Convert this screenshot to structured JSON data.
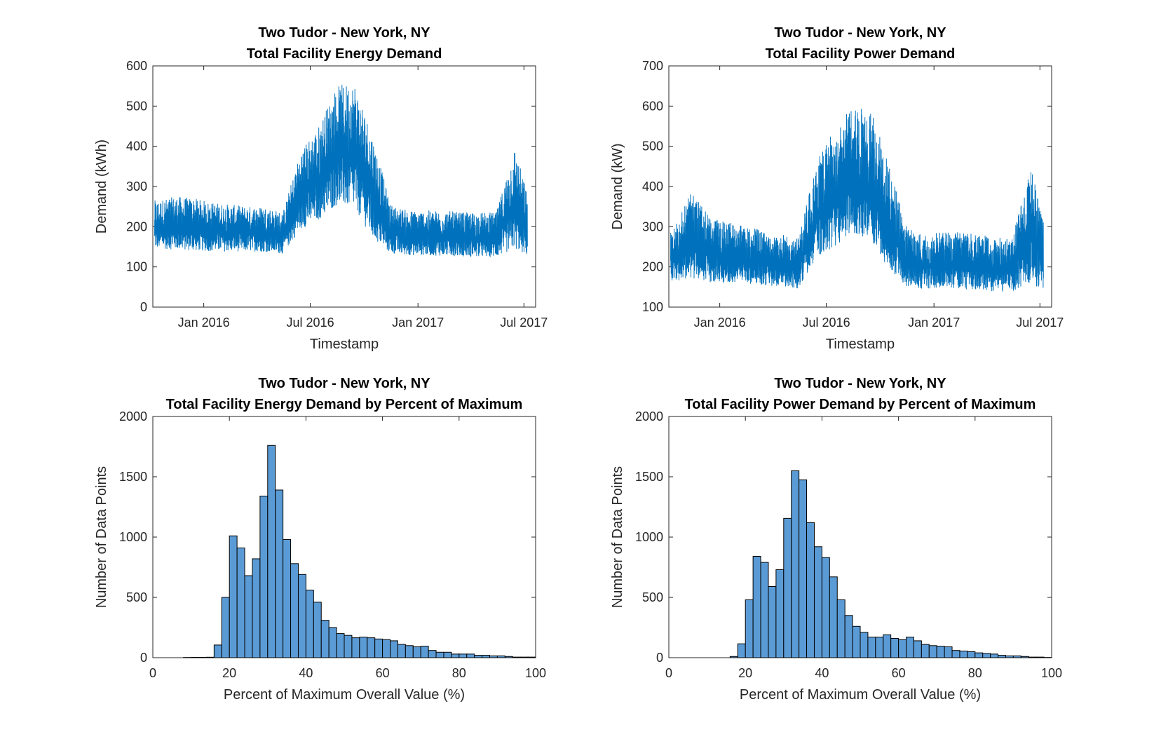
{
  "colors": {
    "line": "#0072BD",
    "bar": "#5B9BD5",
    "axis": "#262626"
  },
  "chart_data": [
    {
      "type": "line",
      "title": [
        "Two Tudor - New York, NY",
        "Total Facility Energy Demand"
      ],
      "xlabel": "Timestamp",
      "ylabel": "Demand (kWh)",
      "x_ticks": [
        "Jan 2016",
        "Jul 2016",
        "Jan 2017",
        "Jul 2017"
      ],
      "x_tick_values": [
        "2016-01",
        "2016-07",
        "2017-01",
        "2017-07"
      ],
      "xlim": [
        "2015-10-06",
        "2017-07-21"
      ],
      "y_ticks": [
        "0",
        "100",
        "200",
        "300",
        "400",
        "500",
        "600"
      ],
      "ylim": [
        0,
        600
      ],
      "grid": false,
      "x_months": [
        "2015-10",
        "2015-11",
        "2015-12",
        "2016-01",
        "2016-02",
        "2016-03",
        "2016-04",
        "2016-05",
        "2016-06",
        "2016-07",
        "2016-08",
        "2016-09",
        "2016-10",
        "2016-11",
        "2016-12",
        "2017-01",
        "2017-02",
        "2017-03",
        "2017-04",
        "2017-05",
        "2017-06",
        "2017-07"
      ],
      "series": [
        {
          "low": [
            125,
            120,
            118,
            118,
            118,
            120,
            118,
            115,
            160,
            175,
            200,
            190,
            125,
            112,
            110,
            110,
            108,
            108,
            105,
            105,
            100,
            100
          ],
          "high": [
            265,
            275,
            270,
            260,
            255,
            250,
            250,
            235,
            390,
            450,
            550,
            560,
            430,
            255,
            240,
            240,
            240,
            235,
            235,
            235,
            400,
            240
          ]
        }
      ]
    },
    {
      "type": "line",
      "title": [
        "Two Tudor - New York, NY",
        "Total Facility Power Demand"
      ],
      "xlabel": "Timestamp",
      "ylabel": "Demand (kW)",
      "x_ticks": [
        "Jan 2016",
        "Jul 2016",
        "Jan 2017",
        "Jul 2017"
      ],
      "x_tick_values": [
        "2016-01",
        "2016-07",
        "2017-01",
        "2017-07"
      ],
      "xlim": [
        "2015-10-06",
        "2017-07-21"
      ],
      "y_ticks": [
        "100",
        "200",
        "300",
        "400",
        "500",
        "600",
        "700"
      ],
      "ylim": [
        100,
        700
      ],
      "grid": false,
      "x_months": [
        "2015-10",
        "2015-11",
        "2015-12",
        "2016-01",
        "2016-02",
        "2016-03",
        "2016-04",
        "2016-05",
        "2016-06",
        "2016-07",
        "2016-08",
        "2016-09",
        "2016-10",
        "2016-11",
        "2016-12",
        "2017-01",
        "2017-02",
        "2017-03",
        "2017-04",
        "2017-05",
        "2017-06",
        "2017-07"
      ],
      "series": [
        {
          "low": [
            140,
            135,
            135,
            135,
            135,
            130,
            130,
            125,
            180,
            200,
            230,
            210,
            150,
            125,
            120,
            125,
            120,
            120,
            115,
            115,
            110,
            110
          ],
          "high": [
            300,
            390,
            320,
            310,
            300,
            290,
            280,
            270,
            470,
            540,
            600,
            590,
            460,
            300,
            280,
            290,
            285,
            280,
            275,
            270,
            450,
            270
          ]
        }
      ]
    },
    {
      "type": "bar",
      "title": [
        "Two Tudor - New York, NY",
        "Total Facility Energy Demand by Percent of Maximum"
      ],
      "xlabel": "Percent of Maximum Overall Value (%)",
      "ylabel": "Number of Data Points",
      "x_ticks": [
        "0",
        "20",
        "40",
        "60",
        "80",
        "100"
      ],
      "xlim": [
        0,
        100
      ],
      "y_ticks": [
        "0",
        "500",
        "1000",
        "1500",
        "2000"
      ],
      "ylim": [
        0,
        2000
      ],
      "bin_edges": [
        8,
        10,
        12,
        14,
        16,
        18,
        20,
        22,
        24,
        26,
        28,
        30,
        32,
        34,
        36,
        38,
        40,
        42,
        44,
        46,
        48,
        50,
        52,
        54,
        56,
        58,
        60,
        62,
        64,
        66,
        68,
        70,
        72,
        74,
        76,
        78,
        80,
        82,
        84,
        86,
        88,
        90,
        92,
        94,
        96,
        98,
        100
      ],
      "values": [
        2,
        3,
        3,
        4,
        105,
        500,
        1010,
        910,
        680,
        820,
        1340,
        1760,
        1390,
        980,
        780,
        690,
        560,
        460,
        310,
        250,
        200,
        185,
        165,
        170,
        165,
        155,
        150,
        140,
        110,
        100,
        90,
        95,
        60,
        45,
        45,
        30,
        30,
        30,
        20,
        20,
        15,
        15,
        10,
        5,
        5,
        5
      ]
    },
    {
      "type": "bar",
      "title": [
        "Two Tudor - New York, NY",
        "Total Facility Power Demand by Percent of Maximum"
      ],
      "xlabel": "Percent of Maximum Overall Value (%)",
      "ylabel": "Number of Data Points",
      "x_ticks": [
        "0",
        "20",
        "40",
        "60",
        "80",
        "100"
      ],
      "xlim": [
        0,
        100
      ],
      "y_ticks": [
        "0",
        "500",
        "1000",
        "1500",
        "2000"
      ],
      "ylim": [
        0,
        2000
      ],
      "bin_edges": [
        16,
        18,
        20,
        22,
        24,
        26,
        28,
        30,
        32,
        34,
        36,
        38,
        40,
        42,
        44,
        46,
        48,
        50,
        52,
        54,
        56,
        58,
        60,
        62,
        64,
        66,
        68,
        70,
        72,
        74,
        76,
        78,
        80,
        82,
        84,
        86,
        88,
        90,
        92,
        94,
        96,
        98,
        100
      ],
      "values": [
        10,
        115,
        480,
        840,
        790,
        590,
        730,
        1155,
        1550,
        1475,
        1120,
        920,
        830,
        670,
        480,
        350,
        260,
        210,
        170,
        170,
        190,
        160,
        150,
        170,
        140,
        110,
        100,
        95,
        90,
        60,
        55,
        50,
        40,
        35,
        30,
        20,
        15,
        15,
        10,
        5,
        5,
        2
      ]
    }
  ]
}
